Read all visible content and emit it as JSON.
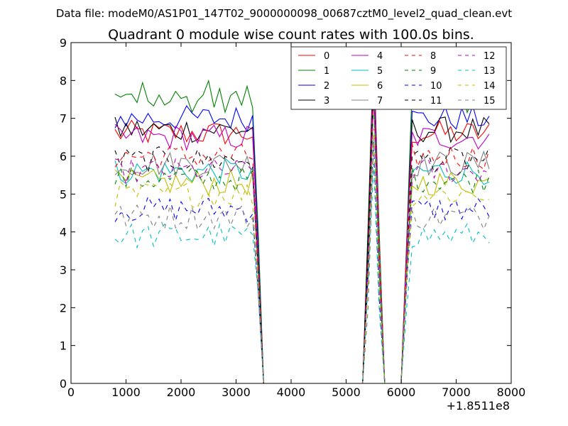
{
  "chart_data": {
    "type": "line",
    "suptitle": "Data file: modeM0/AS1P01_147T02_9000000098_00687cztM0_level2_quad_clean.evt",
    "title": "Quadrant 0 module wise count rates with 100.0s bins.",
    "xlabel": "",
    "ylabel": "",
    "x_offset_label": "+1.8511e8",
    "xlim": [
      0,
      8000
    ],
    "ylim": [
      0,
      9
    ],
    "xticks": [
      "0",
      "1000",
      "2000",
      "3000",
      "4000",
      "5000",
      "6000",
      "7000",
      "8000"
    ],
    "yticks": [
      "0",
      "1",
      "2",
      "3",
      "4",
      "5",
      "6",
      "7",
      "8",
      "9"
    ],
    "grid": false,
    "legend": {
      "placement": "top-right",
      "columns": 4
    },
    "x": [
      800,
      900,
      1000,
      1100,
      1200,
      1300,
      1400,
      1500,
      1600,
      1700,
      1800,
      1900,
      2000,
      2100,
      2200,
      2300,
      2400,
      2500,
      2600,
      2700,
      2800,
      2900,
      3000,
      3100,
      3200,
      3300,
      3400,
      3500,
      3600,
      3700,
      3800,
      3900,
      4000,
      4100,
      4200,
      4300,
      4400,
      4500,
      4600,
      4700,
      4800,
      4900,
      5000,
      5100,
      5200,
      5300,
      5400,
      5500,
      5600,
      5700,
      5800,
      5900,
      6000,
      6100,
      6200,
      6300,
      6400,
      6500,
      6600,
      6700,
      6800,
      6900,
      7000,
      7100,
      7200,
      7300,
      7400,
      7500,
      7600
    ],
    "gap": {
      "zero_from": 3500,
      "zero_to": 5300,
      "dip_from": 5700,
      "dip_to": 6000,
      "peak_x": 5500
    },
    "series": [
      {
        "name": "0",
        "color": "#ff0000",
        "dash": "solid",
        "level": 6.6
      },
      {
        "name": "1",
        "color": "#008000",
        "dash": "solid",
        "level": 7.5
      },
      {
        "name": "2",
        "color": "#0000ff",
        "dash": "solid",
        "level": 7.0
      },
      {
        "name": "3",
        "color": "#000000",
        "dash": "solid",
        "level": 6.7
      },
      {
        "name": "4",
        "color": "#bf00bf",
        "dash": "solid",
        "level": 6.5
      },
      {
        "name": "5",
        "color": "#00bfbf",
        "dash": "solid",
        "level": 5.6
      },
      {
        "name": "6",
        "color": "#bfbf00",
        "dash": "solid",
        "level": 5.3
      },
      {
        "name": "7",
        "color": "#808080",
        "dash": "solid",
        "level": 5.8
      },
      {
        "name": "8",
        "color": "#ff0000",
        "dash": "dashed",
        "level": 6.0
      },
      {
        "name": "9",
        "color": "#008000",
        "dash": "dashed",
        "level": 5.4
      },
      {
        "name": "10",
        "color": "#0000ff",
        "dash": "dashed",
        "level": 4.6
      },
      {
        "name": "11",
        "color": "#000000",
        "dash": "dashed",
        "level": 5.9
      },
      {
        "name": "12",
        "color": "#bf00bf",
        "dash": "dashed",
        "level": 5.6
      },
      {
        "name": "13",
        "color": "#00bfbf",
        "dash": "dashed",
        "level": 3.9
      },
      {
        "name": "14",
        "color": "#bfbf00",
        "dash": "dashed",
        "level": 5.0
      },
      {
        "name": "15",
        "color": "#808080",
        "dash": "dashed",
        "level": 4.4
      }
    ]
  }
}
